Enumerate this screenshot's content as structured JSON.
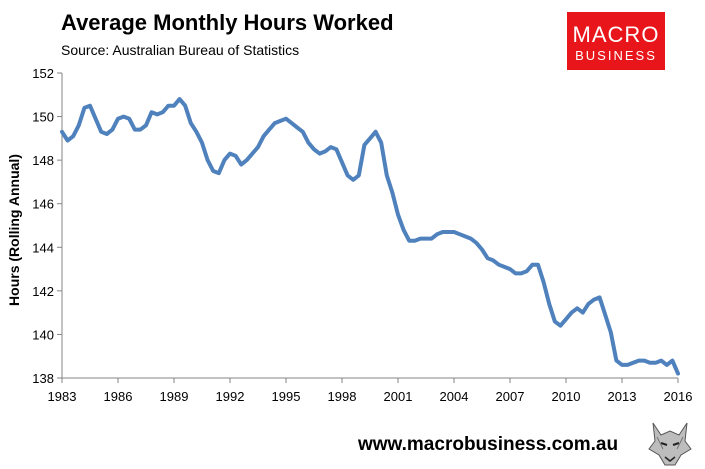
{
  "header": {
    "title": "Average Monthly Hours Worked",
    "subtitle": "Source: Australian Bureau of Statistics"
  },
  "logo": {
    "line1": "MACRO",
    "line2": "BUSINESS",
    "color": "#e8161b"
  },
  "footer": {
    "url": "www.macrobusiness.com.au",
    "mascot_icon": "wolf-icon"
  },
  "colors": {
    "line": "#4f81bd",
    "axis": "#868686"
  },
  "chart_data": {
    "type": "line",
    "title": "Average Monthly Hours Worked",
    "xlabel": "",
    "ylabel": "Hours (Rolling Annual)",
    "xlim": [
      1983,
      2016
    ],
    "ylim": [
      138,
      152
    ],
    "x_ticks": [
      "1983",
      "1986",
      "1989",
      "1992",
      "1995",
      "1998",
      "2001",
      "2004",
      "2007",
      "2010",
      "2013",
      "2016"
    ],
    "y_ticks": [
      "138",
      "140",
      "142",
      "144",
      "146",
      "148",
      "150",
      "152"
    ],
    "grid": false,
    "legend": "none",
    "series": [
      {
        "x": [
          1983.0,
          1983.3,
          1983.6,
          1983.9,
          1984.2,
          1984.5,
          1984.8,
          1985.1,
          1985.4,
          1985.7,
          1986.0,
          1986.3,
          1986.6,
          1986.9,
          1987.2,
          1987.5,
          1987.8,
          1988.1,
          1988.4,
          1988.7,
          1989.0,
          1989.3,
          1989.6,
          1989.9,
          1990.2,
          1990.5,
          1990.8,
          1991.1,
          1991.4,
          1991.7,
          1992.0,
          1992.3,
          1992.6,
          1992.9,
          1993.2,
          1993.5,
          1993.8,
          1994.1,
          1994.4,
          1994.7,
          1995.0,
          1995.3,
          1995.6,
          1995.9,
          1996.2,
          1996.5,
          1996.8,
          1997.1,
          1997.4,
          1997.7,
          1998.0,
          1998.3,
          1998.6,
          1998.9,
          1999.2,
          1999.5,
          1999.8,
          2000.1,
          2000.4,
          2000.7,
          2001.0,
          2001.3,
          2001.6,
          2001.9,
          2002.2,
          2002.5,
          2002.8,
          2003.1,
          2003.4,
          2003.7,
          2004.0,
          2004.3,
          2004.6,
          2004.9,
          2005.2,
          2005.5,
          2005.8,
          2006.1,
          2006.4,
          2006.7,
          2007.0,
          2007.3,
          2007.6,
          2007.9,
          2008.2,
          2008.5,
          2008.8,
          2009.1,
          2009.4,
          2009.7,
          2010.0,
          2010.3,
          2010.6,
          2010.9,
          2011.2,
          2011.5,
          2011.8,
          2012.1,
          2012.4,
          2012.7,
          2013.0,
          2013.3,
          2013.6,
          2013.9,
          2014.2,
          2014.5,
          2014.8,
          2015.1,
          2015.4,
          2015.7,
          2016.0
        ],
        "values": [
          149.3,
          148.9,
          149.1,
          149.6,
          150.4,
          150.5,
          149.9,
          149.3,
          149.2,
          149.4,
          149.9,
          150.0,
          149.9,
          149.4,
          149.4,
          149.6,
          150.2,
          150.1,
          150.2,
          150.5,
          150.5,
          150.8,
          150.5,
          149.7,
          149.3,
          148.8,
          148.0,
          147.5,
          147.4,
          148.0,
          148.3,
          148.2,
          147.8,
          148.0,
          148.3,
          148.6,
          149.1,
          149.4,
          149.7,
          149.8,
          149.9,
          149.7,
          149.5,
          149.3,
          148.8,
          148.5,
          148.3,
          148.4,
          148.6,
          148.5,
          147.9,
          147.3,
          147.1,
          147.3,
          148.7,
          149.0,
          149.3,
          148.8,
          147.3,
          146.5,
          145.5,
          144.8,
          144.3,
          144.3,
          144.4,
          144.4,
          144.4,
          144.6,
          144.7,
          144.7,
          144.7,
          144.6,
          144.5,
          144.4,
          144.2,
          143.9,
          143.5,
          143.4,
          143.2,
          143.1,
          143.0,
          142.8,
          142.8,
          142.9,
          143.2,
          143.2,
          142.4,
          141.4,
          140.6,
          140.4,
          140.7,
          141.0,
          141.2,
          141.0,
          141.4,
          141.6,
          141.7,
          140.9,
          140.1,
          138.8,
          138.6,
          138.6,
          138.7,
          138.8,
          138.8,
          138.7,
          138.7,
          138.8,
          138.6,
          138.8,
          138.2
        ]
      }
    ]
  }
}
